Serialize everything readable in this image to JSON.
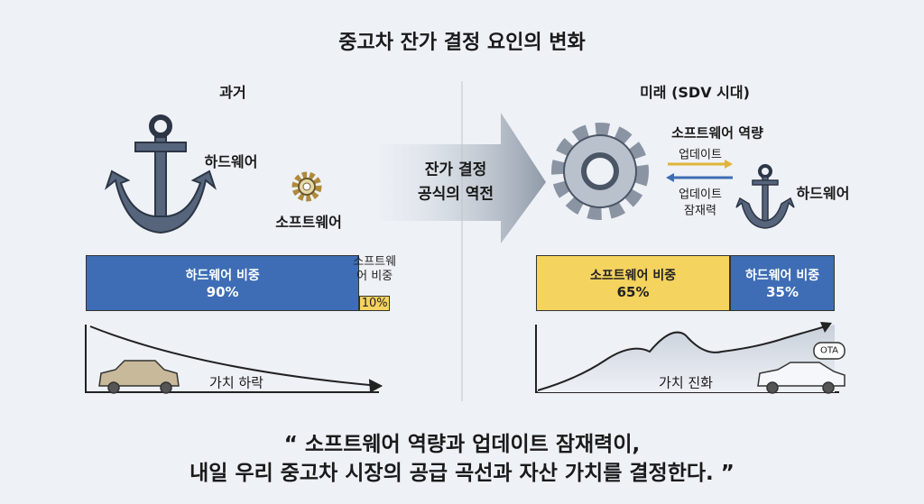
{
  "title": "중고차 잔가 결정 요인의 변화",
  "past": {
    "heading": "과거",
    "hardware_label": "하드웨어",
    "software_label": "소프트웨어",
    "bar": [
      {
        "name": "하드웨어 비중",
        "value": 90,
        "label": "90%",
        "color": "#3e6db5"
      },
      {
        "name": "소프트웨어 비중",
        "value": 10,
        "label": "10%",
        "color": "#f4d35e"
      }
    ],
    "curve_label": "가치 하락"
  },
  "arrow_text": [
    "잔가 결정",
    "공식의 역전"
  ],
  "future": {
    "heading": "미래 (SDV 시대)",
    "software_label": "소프트웨어 역량",
    "update_label": "업데이트",
    "potential_label": [
      "업데이트",
      "잠재력"
    ],
    "hardware_label": "하드웨어",
    "bar": [
      {
        "name": "소프트웨어 비중",
        "value": 65,
        "label": "65%",
        "color": "#f4d35e"
      },
      {
        "name": "하드웨어 비중",
        "value": 35,
        "label": "35%",
        "color": "#3e6db5"
      }
    ],
    "curve_label": "가치 진화",
    "badge": "OTA"
  },
  "quote": [
    "“ 소프트웨어 역량과 업데이트 잠재력이,",
    "내일 우리 중고차 시장의 공급 곡선과 자산 가치를 결정한다. ”"
  ]
}
